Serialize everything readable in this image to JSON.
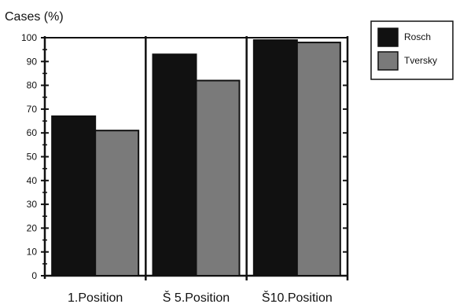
{
  "chart_data": {
    "type": "bar",
    "ylabel": "Cases (%)",
    "categories": [
      "1.Position",
      "Š 5.Position",
      "Š10.Position"
    ],
    "series": [
      {
        "name": "Rosch",
        "values": [
          67,
          93,
          99
        ],
        "color": "#111111"
      },
      {
        "name": "Tversky",
        "values": [
          61,
          82,
          98
        ],
        "color": "#7a7a7a"
      }
    ],
    "ylim": [
      0,
      100
    ],
    "yticks": [
      0,
      10,
      20,
      30,
      40,
      50,
      60,
      70,
      80,
      90,
      100
    ],
    "grid": false,
    "legend": "top-right"
  }
}
